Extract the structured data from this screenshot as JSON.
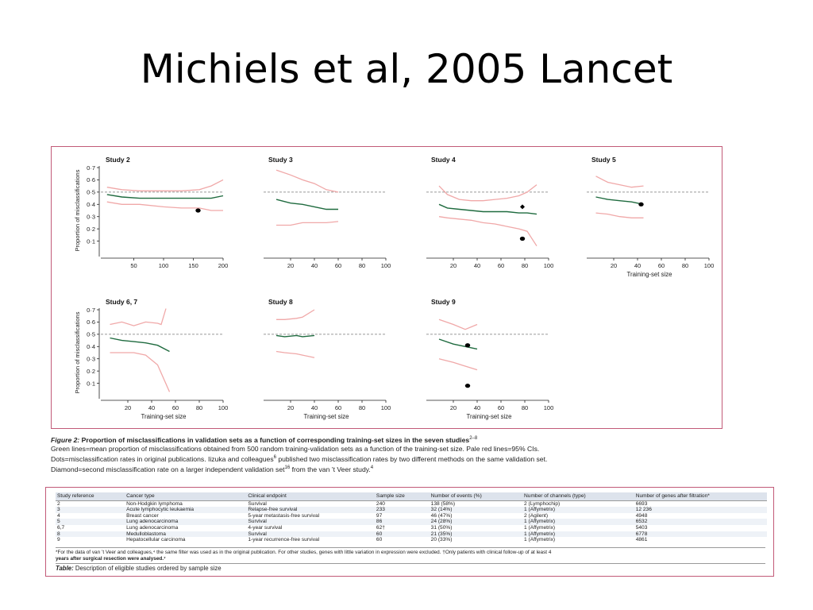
{
  "slide": {
    "title": "Michiels et al, 2005 Lancet"
  },
  "figure": {
    "caption_label": "Figure 2:",
    "caption_title": " Proportion of misclassifications in validation sets as a function of corresponding training-set sizes in the seven studies",
    "caption_refs": "2–8",
    "caption_line2": "Green lines=mean proportion of misclassifications obtained from 500 random training-validation sets as a function of the training-set size. Pale red lines=95% CIs.",
    "caption_line3": "Dots=misclassification rates in original publications. Iizuka and colleagues",
    "caption_line3_ref": "6",
    "caption_line3_rest": " published two misclassification rates by two different methods on the same validation set.",
    "caption_line4": "Diamond=second misclassification rate on a larger independent validation set",
    "caption_line4_ref": "16",
    "caption_line4_rest": " from the van ’t Veer study.",
    "caption_line4_ref2": "4",
    "colors": {
      "mean": "#1f6b3f",
      "ci": "#f0a8a8",
      "dashed": "#777777",
      "border": "#c25a78"
    }
  },
  "chart_data": [
    {
      "type": "line",
      "title": "Study 2",
      "xlabel": "",
      "ylabel": "Proportion of misclassifications",
      "xlim": [
        0,
        200
      ],
      "ylim": [
        0,
        0.7
      ],
      "xticks": [
        "50",
        "100",
        "150",
        "200"
      ],
      "xtick_values": [
        50,
        100,
        150,
        200
      ],
      "yticks": [
        "0·1",
        "0·2",
        "0·3",
        "0·4",
        "0·5",
        "0·6",
        "0·7"
      ],
      "reference_line": 0.5,
      "series": [
        {
          "role": "upper-ci",
          "x": [
            5,
            30,
            60,
            100,
            130,
            160,
            180,
            200
          ],
          "values": [
            0.54,
            0.52,
            0.51,
            0.51,
            0.51,
            0.52,
            0.55,
            0.6
          ]
        },
        {
          "role": "mean",
          "x": [
            5,
            30,
            60,
            100,
            130,
            160,
            180,
            200
          ],
          "values": [
            0.48,
            0.46,
            0.45,
            0.45,
            0.45,
            0.45,
            0.45,
            0.47
          ]
        },
        {
          "role": "lower-ci",
          "x": [
            5,
            30,
            60,
            100,
            130,
            160,
            180,
            200
          ],
          "values": [
            0.42,
            0.4,
            0.4,
            0.38,
            0.37,
            0.37,
            0.35,
            0.35
          ]
        }
      ],
      "points": [
        {
          "x": 158,
          "y": 0.35,
          "shape": "dot"
        }
      ]
    },
    {
      "type": "line",
      "title": "Study 3",
      "xlabel": "",
      "ylabel": "",
      "xlim": [
        0,
        100
      ],
      "ylim": [
        0,
        0.7
      ],
      "xticks": [
        "20",
        "40",
        "60",
        "80",
        "100"
      ],
      "xtick_values": [
        20,
        40,
        60,
        80,
        100
      ],
      "yticks": [],
      "reference_line": 0.5,
      "series": [
        {
          "role": "upper-ci",
          "x": [
            8,
            20,
            30,
            40,
            50,
            60
          ],
          "values": [
            0.68,
            0.64,
            0.6,
            0.57,
            0.52,
            0.5
          ]
        },
        {
          "role": "mean",
          "x": [
            8,
            20,
            30,
            40,
            50,
            60
          ],
          "values": [
            0.44,
            0.41,
            0.4,
            0.38,
            0.36,
            0.36
          ]
        },
        {
          "role": "lower-ci",
          "x": [
            8,
            20,
            30,
            40,
            50,
            60
          ],
          "values": [
            0.23,
            0.23,
            0.25,
            0.25,
            0.25,
            0.26
          ]
        }
      ],
      "points": []
    },
    {
      "type": "line",
      "title": "Study 4",
      "xlabel": "",
      "ylabel": "",
      "xlim": [
        0,
        100
      ],
      "ylim": [
        0,
        0.7
      ],
      "xticks": [
        "20",
        "40",
        "60",
        "80",
        "100"
      ],
      "xtick_values": [
        20,
        40,
        60,
        80,
        100
      ],
      "yticks": [],
      "reference_line": 0.5,
      "series": [
        {
          "role": "upper-ci",
          "x": [
            8,
            15,
            25,
            35,
            45,
            55,
            65,
            75,
            82,
            90
          ],
          "values": [
            0.55,
            0.48,
            0.44,
            0.43,
            0.43,
            0.44,
            0.45,
            0.47,
            0.5,
            0.56
          ]
        },
        {
          "role": "mean",
          "x": [
            8,
            15,
            25,
            35,
            45,
            55,
            65,
            75,
            82,
            90
          ],
          "values": [
            0.4,
            0.37,
            0.36,
            0.35,
            0.34,
            0.34,
            0.34,
            0.33,
            0.33,
            0.32
          ]
        },
        {
          "role": "lower-ci",
          "x": [
            8,
            15,
            25,
            35,
            45,
            55,
            65,
            75,
            82,
            90
          ],
          "values": [
            0.3,
            0.29,
            0.28,
            0.27,
            0.25,
            0.24,
            0.22,
            0.2,
            0.18,
            0.06
          ]
        }
      ],
      "points": [
        {
          "x": 78,
          "y": 0.38,
          "shape": "diamond"
        },
        {
          "x": 78,
          "y": 0.12,
          "shape": "dot"
        }
      ]
    },
    {
      "type": "line",
      "title": "Study 5",
      "xlabel": "Training-set size",
      "ylabel": "",
      "xlim": [
        0,
        100
      ],
      "ylim": [
        0,
        0.7
      ],
      "xticks": [
        "20",
        "40",
        "60",
        "80",
        "100"
      ],
      "xtick_values": [
        20,
        40,
        60,
        80,
        100
      ],
      "yticks": [],
      "reference_line": 0.5,
      "series": [
        {
          "role": "upper-ci",
          "x": [
            5,
            15,
            25,
            35,
            45
          ],
          "values": [
            0.63,
            0.58,
            0.56,
            0.54,
            0.55
          ]
        },
        {
          "role": "mean",
          "x": [
            5,
            15,
            25,
            35,
            45
          ],
          "values": [
            0.46,
            0.44,
            0.43,
            0.42,
            0.4
          ]
        },
        {
          "role": "lower-ci",
          "x": [
            5,
            15,
            25,
            35,
            45
          ],
          "values": [
            0.33,
            0.32,
            0.3,
            0.29,
            0.29
          ]
        }
      ],
      "points": [
        {
          "x": 43,
          "y": 0.4,
          "shape": "dot"
        }
      ]
    },
    {
      "type": "line",
      "title": "Study 6, 7",
      "xlabel": "Training-set size",
      "ylabel": "Proportion of misclassifications",
      "xlim": [
        0,
        100
      ],
      "ylim": [
        0,
        0.7
      ],
      "xticks": [
        "20",
        "40",
        "60",
        "80",
        "100"
      ],
      "xtick_values": [
        20,
        40,
        60,
        80,
        100
      ],
      "yticks": [
        "0·1",
        "0·2",
        "0·3",
        "0·4",
        "0·5",
        "0·6",
        "0·7"
      ],
      "reference_line": 0.5,
      "series": [
        {
          "role": "upper-ci",
          "x": [
            5,
            15,
            25,
            35,
            45,
            48,
            52
          ],
          "values": [
            0.58,
            0.6,
            0.57,
            0.6,
            0.59,
            0.58,
            0.71
          ]
        },
        {
          "role": "mean",
          "x": [
            5,
            15,
            25,
            35,
            45,
            55
          ],
          "values": [
            0.47,
            0.45,
            0.44,
            0.43,
            0.41,
            0.36
          ]
        },
        {
          "role": "lower-ci",
          "x": [
            5,
            15,
            25,
            35,
            45,
            55
          ],
          "values": [
            0.35,
            0.35,
            0.35,
            0.33,
            0.25,
            0.03
          ]
        }
      ],
      "points": []
    },
    {
      "type": "line",
      "title": "Study 8",
      "xlabel": "Training-set size",
      "ylabel": "",
      "xlim": [
        0,
        100
      ],
      "ylim": [
        0,
        0.7
      ],
      "xticks": [
        "20",
        "40",
        "60",
        "80",
        "100"
      ],
      "xtick_values": [
        20,
        40,
        60,
        80,
        100
      ],
      "yticks": [],
      "reference_line": 0.5,
      "series": [
        {
          "role": "upper-ci",
          "x": [
            8,
            15,
            25,
            30,
            40
          ],
          "values": [
            0.62,
            0.62,
            0.63,
            0.64,
            0.7
          ]
        },
        {
          "role": "mean",
          "x": [
            8,
            15,
            25,
            30,
            40
          ],
          "values": [
            0.49,
            0.48,
            0.49,
            0.48,
            0.49
          ]
        },
        {
          "role": "lower-ci",
          "x": [
            8,
            15,
            25,
            30,
            40
          ],
          "values": [
            0.36,
            0.35,
            0.34,
            0.33,
            0.31
          ]
        }
      ],
      "points": []
    },
    {
      "type": "line",
      "title": "Study 9",
      "xlabel": "Training-set size",
      "ylabel": "",
      "xlim": [
        0,
        100
      ],
      "ylim": [
        0,
        0.7
      ],
      "xticks": [
        "20",
        "40",
        "60",
        "80",
        "100"
      ],
      "xtick_values": [
        20,
        40,
        60,
        80,
        100
      ],
      "yticks": [],
      "reference_line": 0.5,
      "series": [
        {
          "role": "upper-ci",
          "x": [
            8,
            20,
            30,
            40
          ],
          "values": [
            0.62,
            0.58,
            0.54,
            0.58
          ]
        },
        {
          "role": "mean",
          "x": [
            8,
            20,
            30,
            40
          ],
          "values": [
            0.46,
            0.42,
            0.4,
            0.38
          ]
        },
        {
          "role": "lower-ci",
          "x": [
            8,
            20,
            30,
            40
          ],
          "values": [
            0.3,
            0.27,
            0.24,
            0.21
          ]
        }
      ],
      "points": [
        {
          "x": 32,
          "y": 0.41,
          "shape": "dot"
        },
        {
          "x": 32,
          "y": 0.08,
          "shape": "dot"
        }
      ]
    }
  ],
  "table": {
    "headers": [
      "Study reference",
      "Cancer type",
      "Clinical endpoint",
      "Sample size",
      "Number of events (%)",
      "Number of channels (type)",
      "Number of genes after filtration*"
    ],
    "rows": [
      [
        "2",
        "Non-Hodgkin lymphoma",
        "Survival",
        "240",
        "138 (58%)",
        "2 (Lymphochip)",
        "6693"
      ],
      [
        "3",
        "Acute lymphocytic leukaemia",
        "Relapse-free survival",
        "233",
        "32 (14%)",
        "1 (Affymetrix)",
        "12 236"
      ],
      [
        "4",
        "Breast cancer",
        "5-year metastasis-free survival",
        "97",
        "46 (47%)",
        "2 (Agilent)",
        "4948"
      ],
      [
        "5",
        "Lung adenocarcinoma",
        "Survival",
        "86",
        "24 (28%)",
        "1 (Affymetrix)",
        "6532"
      ],
      [
        "6,7",
        "Lung adenocarcinoma",
        "4-year survival",
        "62†",
        "31 (50%)",
        "1 (Affymetrix)",
        "5403"
      ],
      [
        "8",
        "Medulloblastoma",
        "Survival",
        "60",
        "21 (35%)",
        "1 (Affymetrix)",
        "6778"
      ],
      [
        "9",
        "Hepatocellular carcinoma",
        "1-year recurrence-free survival",
        "60",
        "20 (33%)",
        "1 (Affymetrix)",
        "4861"
      ]
    ],
    "footnote": "*For the data of van ’t Veer and colleagues,⁴ the same filter was used as in the original publication. For other studies, genes with little variation in expression were excluded. †Only patients with clinical follow-up of at least 4",
    "footnote_bold": "years after surgical resection were analysed.⁷",
    "caption_label": "Table:",
    "caption_text": " Description of eligible studies ordered by sample size"
  }
}
